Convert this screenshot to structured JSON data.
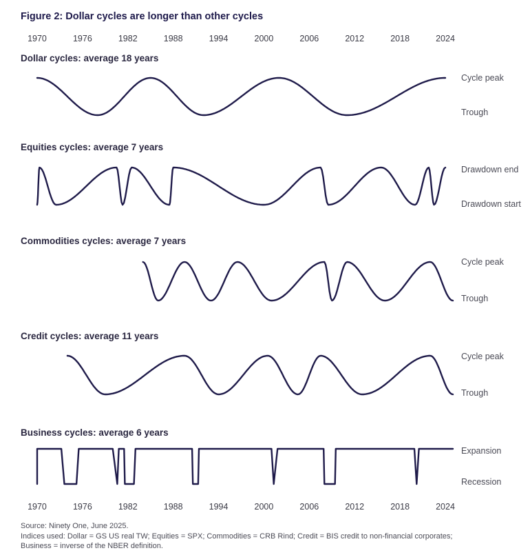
{
  "chart_data": {
    "type": "line",
    "title": "Figure 2: Dollar cycles are longer than other cycles",
    "x_ticks": [
      "1970",
      "1976",
      "1982",
      "1988",
      "1994",
      "2000",
      "2006",
      "2012",
      "2018",
      "2024"
    ],
    "x_range": [
      1969,
      2025
    ],
    "panels": [
      {
        "title": "Dollar cycles: average 18 years",
        "high_label": "Cycle peak",
        "low_label": "Trough",
        "series": [
          {
            "name": "Dollar",
            "extrema": [
              [
                1970,
                1
              ],
              [
                1978,
                0
              ],
              [
                1985,
                1
              ],
              [
                1992,
                0
              ],
              [
                2002,
                1
              ],
              [
                2011,
                0
              ],
              [
                2024,
                1
              ]
            ]
          }
        ]
      },
      {
        "title": "Equities cycles: average 7 years",
        "high_label": "Drawdown end",
        "low_label": "Drawdown start",
        "series": [
          {
            "name": "Equities",
            "extrema": [
              [
                1970,
                0
              ],
              [
                1970.3,
                1
              ],
              [
                1972.5,
                0
              ],
              [
                1980.5,
                1
              ],
              [
                1981.3,
                0
              ],
              [
                1982.5,
                1
              ],
              [
                1987.5,
                0
              ],
              [
                1988,
                1
              ],
              [
                2000,
                0
              ],
              [
                2007.5,
                1
              ],
              [
                2008.5,
                0
              ],
              [
                2015.5,
                1
              ],
              [
                2020,
                0
              ],
              [
                2021.8,
                1
              ],
              [
                2022.5,
                0
              ],
              [
                2024,
                1
              ]
            ]
          }
        ]
      },
      {
        "title": "Commodities cycles: average 7 years",
        "high_label": "Cycle peak",
        "low_label": "Trough",
        "series": [
          {
            "name": "Commodities",
            "extrema": [
              [
                1984,
                1
              ],
              [
                1986,
                0
              ],
              [
                1989.5,
                1
              ],
              [
                1993,
                0
              ],
              [
                1996.5,
                1
              ],
              [
                2001,
                0
              ],
              [
                2008,
                1
              ],
              [
                2009,
                0
              ],
              [
                2011,
                1
              ],
              [
                2016,
                0
              ],
              [
                2022,
                1
              ],
              [
                2025,
                0
              ]
            ]
          }
        ]
      },
      {
        "title": "Credit cycles: average 11 years",
        "high_label": "Cycle peak",
        "low_label": "Trough",
        "series": [
          {
            "name": "Credit",
            "extrema": [
              [
                1974,
                1
              ],
              [
                1979,
                0
              ],
              [
                1989.5,
                1
              ],
              [
                1994,
                0
              ],
              [
                2000.5,
                1
              ],
              [
                2004.5,
                0
              ],
              [
                2007.5,
                1
              ],
              [
                2013,
                0
              ],
              [
                2022,
                1
              ],
              [
                2025,
                0
              ]
            ]
          }
        ]
      },
      {
        "title": "Business cycles: average 6 years",
        "high_label": "Expansion",
        "low_label": "Recession",
        "series": [
          {
            "name": "Business",
            "path": [
              [
                1970,
                0
              ],
              [
                1970,
                1
              ],
              [
                1973.2,
                1
              ],
              [
                1973.6,
                0
              ],
              [
                1975.2,
                0
              ],
              [
                1975.5,
                1
              ],
              [
                1980,
                1
              ],
              [
                1980.6,
                0
              ],
              [
                1980.8,
                1
              ],
              [
                1981.5,
                1
              ],
              [
                1981.6,
                0
              ],
              [
                1982.8,
                0
              ],
              [
                1983,
                1
              ],
              [
                1990.5,
                1
              ],
              [
                1990.6,
                0
              ],
              [
                1991.3,
                0
              ],
              [
                1991.4,
                1
              ],
              [
                2001,
                1
              ],
              [
                2001.3,
                0
              ],
              [
                2001.8,
                1
              ],
              [
                2007.9,
                1
              ],
              [
                2008,
                0
              ],
              [
                2009.4,
                0
              ],
              [
                2009.5,
                1
              ],
              [
                2019.9,
                1
              ],
              [
                2020.2,
                0
              ],
              [
                2020.5,
                1
              ],
              [
                2025,
                1
              ]
            ]
          }
        ]
      }
    ]
  },
  "footer": {
    "source": "Source: Ninety One, June 2025.",
    "indices_line1": "Indices used: Dollar = GS US real TW; Equities = SPX; Commodities = CRB Rind; Credit = BIS credit to non-financial corporates;",
    "indices_line2": "Business = inverse of the NBER definition."
  },
  "colors": {
    "line": "#1f1b4a",
    "title": "#1e1a4b",
    "text": "#4a4a55"
  }
}
